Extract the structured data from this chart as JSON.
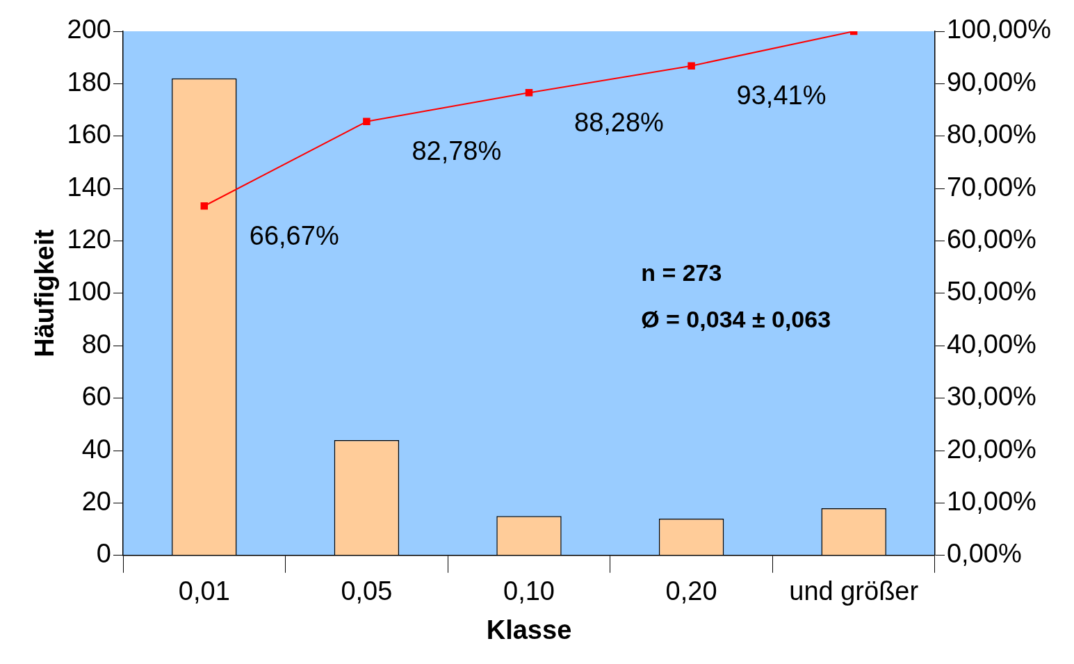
{
  "chart_data": {
    "type": "bar",
    "xlabel": "Klasse",
    "ylabel": "Häufigkeit",
    "categories": [
      "0,01",
      "0,05",
      "0,10",
      "0,20",
      "und größer"
    ],
    "series": [
      {
        "color": "#ffcc99",
        "values": [
          182,
          44,
          15,
          14,
          18
        ]
      },
      {
        "type": "line",
        "axis": "y2",
        "color": "#ff0000",
        "marker": "square",
        "line_style": "solid",
        "values": [
          66.67,
          82.78,
          88.28,
          93.41,
          100
        ],
        "value_labels": [
          "66,67%",
          "82,78%",
          "88,28%",
          "93,41%",
          null
        ]
      }
    ],
    "ylim": [
      0,
      200
    ],
    "yticks": [
      0,
      20,
      40,
      60,
      80,
      100,
      120,
      140,
      160,
      180,
      200
    ],
    "y2lim": [
      0,
      100
    ],
    "y2ticks": [
      {
        "value": 0,
        "label": "0,00%"
      },
      {
        "value": 10,
        "label": "10,00%"
      },
      {
        "value": 20,
        "label": "20,00%"
      },
      {
        "value": 30,
        "label": "30,00%"
      },
      {
        "value": 40,
        "label": "40,00%"
      },
      {
        "value": 50,
        "label": "50,00%"
      },
      {
        "value": 60,
        "label": "60,00%"
      },
      {
        "value": 70,
        "label": "70,00%"
      },
      {
        "value": 80,
        "label": "80,00%"
      },
      {
        "value": 90,
        "label": "90,00%"
      },
      {
        "value": 100,
        "label": "100,00%"
      }
    ],
    "annotations": [
      "n = 273",
      "Ø = 0,034 ± 0,063"
    ],
    "grid": false,
    "legend": false
  }
}
